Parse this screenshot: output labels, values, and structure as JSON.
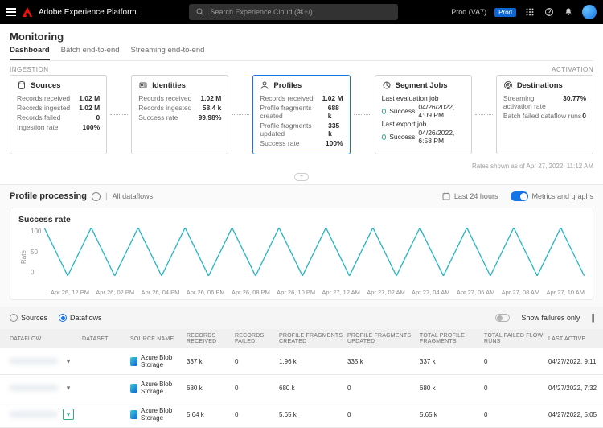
{
  "topbar": {
    "product": "Adobe Experience Platform",
    "search_placeholder": "Search Experience Cloud (⌘+/)",
    "env_label": "Prod (VA7)",
    "env_badge": "Prod"
  },
  "header": {
    "title": "Monitoring",
    "tabs": [
      "Dashboard",
      "Batch end-to-end",
      "Streaming end-to-end"
    ],
    "active_tab": 0
  },
  "pipeline": {
    "left_label": "INGESTION",
    "right_label": "ACTIVATION",
    "cards": [
      {
        "title": "Sources",
        "rows": [
          {
            "k": "Records received",
            "v": "1.02 M"
          },
          {
            "k": "Records ingested",
            "v": "1.02 M"
          },
          {
            "k": "Records failed",
            "v": "0"
          },
          {
            "k": "Ingestion rate",
            "v": "100%"
          }
        ],
        "active": false
      },
      {
        "title": "Identities",
        "rows": [
          {
            "k": "Records received",
            "v": "1.02 M"
          },
          {
            "k": "Records ingested",
            "v": "58.4 k"
          },
          {
            "k": "Success rate",
            "v": "99.98%"
          }
        ],
        "active": false
      },
      {
        "title": "Profiles",
        "rows": [
          {
            "k": "Records received",
            "v": "1.02 M"
          },
          {
            "k": "Profile fragments created",
            "v": "688 k"
          },
          {
            "k": "Profile fragments updated",
            "v": "335 k"
          },
          {
            "k": "Success rate",
            "v": "100%"
          }
        ],
        "active": true
      },
      {
        "title": "Segment Jobs",
        "jobs": [
          {
            "label": "Last evaluation job",
            "status": "Success",
            "ts": "04/26/2022, 4:09 PM",
            "color": "#33ab84"
          },
          {
            "label": "Last export job",
            "status": "Success",
            "ts": "04/26/2022, 6:58 PM",
            "color": "#33ab84"
          }
        ],
        "active": false
      },
      {
        "title": "Destinations",
        "rows": [
          {
            "k": "Streaming activation rate",
            "v": "30.77%"
          },
          {
            "k": "Batch failed dataflow runs",
            "v": "0"
          }
        ],
        "active": false
      }
    ],
    "rates_note": "Rates shown as of Apr 27, 2022, 11:12 AM"
  },
  "processing": {
    "title": "Profile processing",
    "crumb": "All dataflows",
    "time_label": "Last 24 hours",
    "toggle_label": "Metrics and graphs"
  },
  "chart": {
    "type": "line",
    "title": "Success rate",
    "ylabel": "Rate",
    "ylim": [
      0,
      100
    ],
    "yticks": [
      0,
      50,
      100
    ],
    "line_color": "#26b5c7",
    "background_color": "#ffffff",
    "categories": [
      "Apr 26, 12 PM",
      "Apr 26, 02 PM",
      "Apr 26, 04 PM",
      "Apr 26, 06 PM",
      "Apr 26, 08 PM",
      "Apr 26, 10 PM",
      "Apr 27, 12 AM",
      "Apr 27, 02 AM",
      "Apr 27, 04 AM",
      "Apr 27, 06 AM",
      "Apr 27, 08 AM",
      "Apr 27, 10 AM"
    ],
    "values": [
      100,
      0,
      100,
      0,
      100,
      0,
      100,
      0,
      100,
      0,
      100,
      0,
      100,
      0,
      100,
      0,
      100,
      0,
      100,
      0,
      100,
      0,
      100,
      0
    ]
  },
  "radios": {
    "sources": "Sources",
    "dataflows": "Dataflows",
    "selected": "dataflows"
  },
  "failures_label": "Show failures only",
  "table": {
    "columns": [
      "DATAFLOW",
      "DATASET",
      "SOURCE NAME",
      "RECORDS RECEIVED",
      "RECORDS FAILED",
      "PROFILE FRAGMENTS CREATED",
      "PROFILE FRAGMENTS UPDATED",
      "TOTAL PROFILE FRAGMENTS",
      "TOTAL FAILED FLOW RUNS",
      "LAST ACTIVE"
    ],
    "source_name": "Azure Blob Storage",
    "rows": [
      {
        "rr": "337 k",
        "rf": "0",
        "pfc": "1.96 k",
        "pfu": "335 k",
        "tpf": "337 k",
        "tfr": "0",
        "la": "04/27/2022, 9:11",
        "hl": false
      },
      {
        "rr": "680 k",
        "rf": "0",
        "pfc": "680 k",
        "pfu": "0",
        "tpf": "680 k",
        "tfr": "0",
        "la": "04/27/2022, 7:32",
        "hl": false
      },
      {
        "rr": "5.64 k",
        "rf": "0",
        "pfc": "5.65 k",
        "pfu": "0",
        "tpf": "5.65 k",
        "tfr": "0",
        "la": "04/27/2022, 5:05",
        "hl": true
      }
    ]
  }
}
